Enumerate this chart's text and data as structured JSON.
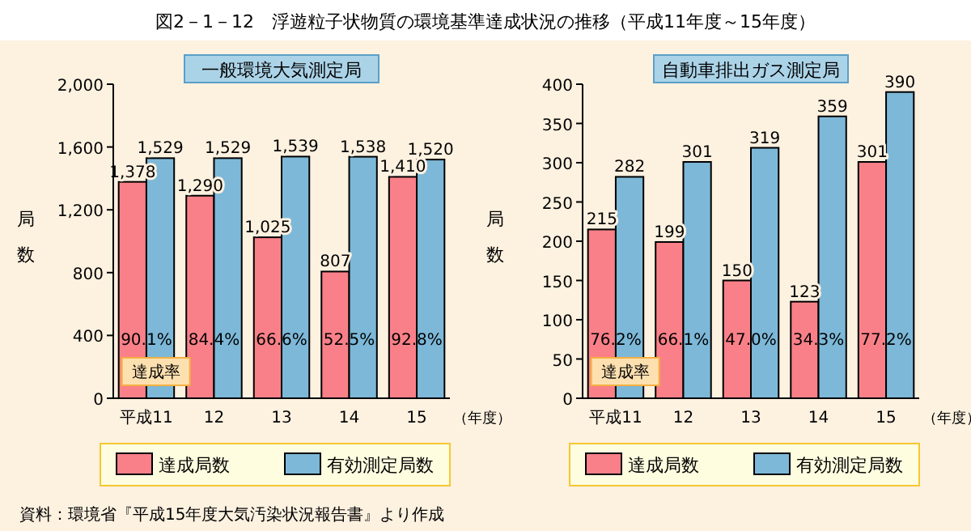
{
  "chart_data": [
    {
      "type": "bar",
      "title": "一般環境大気測定局",
      "categories": [
        "平成11",
        "12",
        "13",
        "14",
        "15"
      ],
      "xlabel": "（年度）",
      "ylabel": "局数",
      "series": [
        {
          "name": "達成局数",
          "color": "#f98088",
          "values": [
            1378,
            1290,
            1025,
            807,
            1410
          ],
          "value_labels": [
            "1,378",
            "1,290",
            "1,025",
            "807",
            "1,410"
          ]
        },
        {
          "name": "有効測定局数",
          "color": "#7db8d8",
          "values": [
            1529,
            1529,
            1539,
            1538,
            1520
          ],
          "value_labels": [
            "1,529",
            "1,529",
            "1,539",
            "1,538",
            "1,520"
          ]
        }
      ],
      "ylim": [
        0,
        2000
      ],
      "yticks": [
        {
          "value": 0,
          "label": "0"
        },
        {
          "value": 400,
          "label": "400"
        },
        {
          "value": 800,
          "label": "800"
        },
        {
          "value": 1200,
          "label": "1,200"
        },
        {
          "value": 1600,
          "label": "1,600"
        },
        {
          "value": 2000,
          "label": "2,000"
        }
      ],
      "legend": "bottom",
      "annotations": [
        "図2－1－12　浮遊粒子状物質の環境基準達成状況の推移（平成11年度～15年度）",
        {
          "text": "90.1%",
          "x": "平成11"
        },
        {
          "text": "84.4%",
          "x": "12"
        },
        {
          "text": "66.6%",
          "x": "13"
        },
        {
          "text": "52.5%",
          "x": "14"
        },
        {
          "text": "92.8%",
          "x": "15"
        },
        "達成率"
      ]
    },
    {
      "type": "bar",
      "title": "自動車排出ガス測定局",
      "categories": [
        "平成11",
        "12",
        "13",
        "14",
        "15"
      ],
      "xlabel": "（年度）",
      "ylabel": "局数",
      "series": [
        {
          "name": "達成局数",
          "color": "#f98088",
          "values": [
            215,
            199,
            150,
            123,
            301
          ]
        },
        {
          "name": "有効測定局数",
          "color": "#7db8d8",
          "values": [
            282,
            301,
            319,
            359,
            390
          ]
        }
      ],
      "ylim": [
        0,
        400
      ],
      "yticks": [
        0,
        50,
        100,
        150,
        200,
        250,
        300,
        350,
        400
      ],
      "data_labels": true,
      "legend": "bottom",
      "annotations": [
        {
          "text": "76.2%",
          "x": "平成11"
        },
        {
          "text": "66.1%",
          "x": "12"
        },
        {
          "text": "47.0%",
          "x": "13"
        },
        {
          "text": "34.3%",
          "x": "14"
        },
        {
          "text": "77.2%",
          "x": "15"
        },
        "達成率",
        "資料：環境省『平成15年度大気汚染状況報告書』より作成"
      ]
    }
  ]
}
